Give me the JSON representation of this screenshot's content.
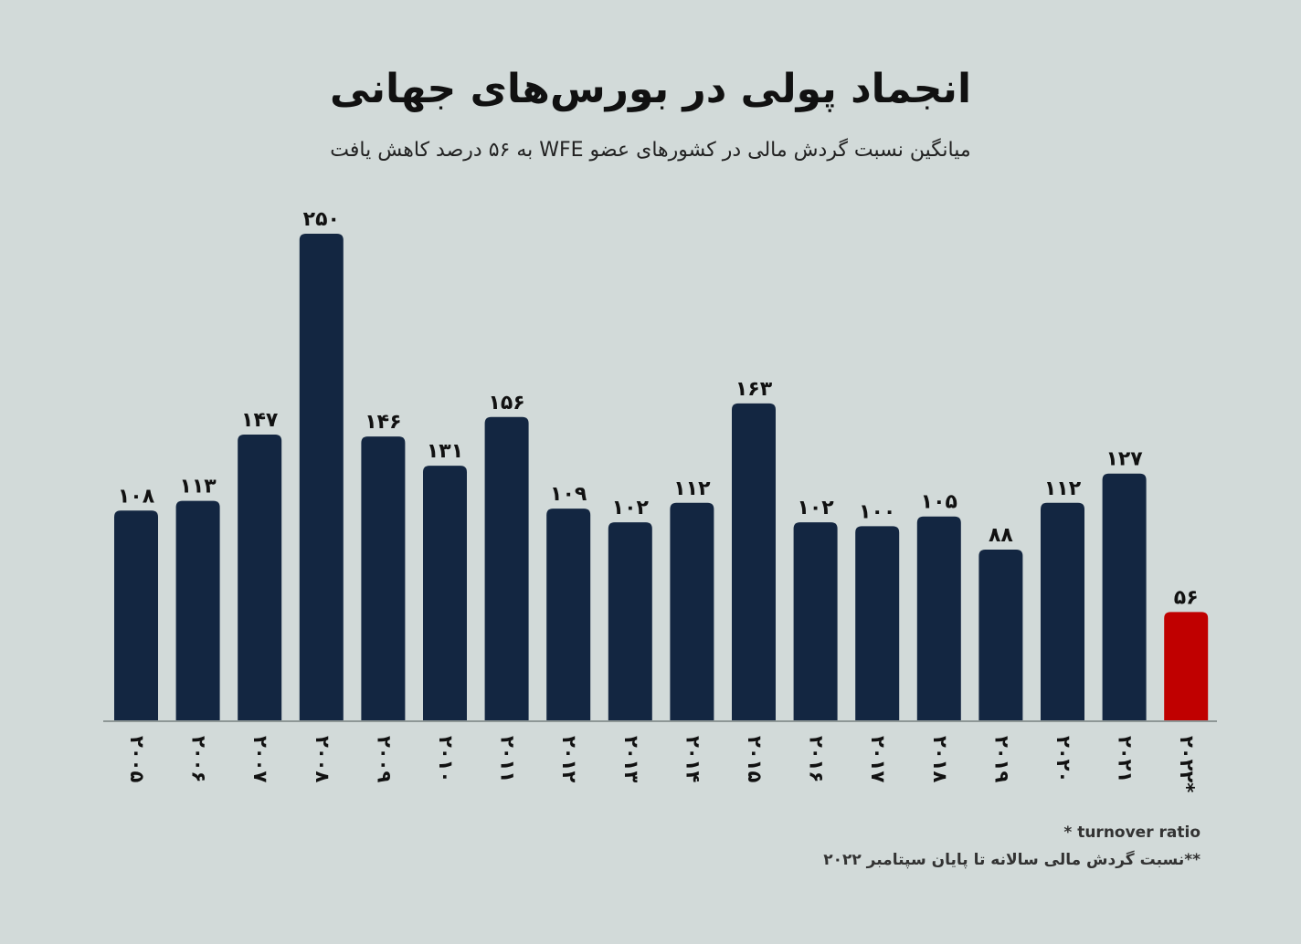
{
  "title": "انجماد پولی در بورس‌های جهانی",
  "subtitle": "میانگین نسبت گردش مالی در کشورهای عضو WFE به ۵۶ درصد کاهش یافت",
  "footnotes": {
    "note1": "turnover ratio *",
    "note2": "**نسبت گردش مالی سالانه تا پایان سپتامبر ۲۰۲۲"
  },
  "colors": {
    "background": "#d2dad9",
    "bar": "#132641",
    "highlight": "#c00000",
    "text": "#111111"
  },
  "chart_data": {
    "type": "bar",
    "title": "انجماد پولی در بورس‌های جهانی",
    "subtitle": "میانگین نسبت گردش مالی در کشورهای عضو WFE به ۵۶ درصد کاهش یافت",
    "categories": [
      "۲۰۰۵",
      "۲۰۰۶",
      "۲۰۰۷",
      "۲۰۰۸",
      "۲۰۰۹",
      "۲۰۱۰",
      "۲۰۱۱",
      "۲۰۱۲",
      "۲۰۱۳",
      "۲۰۱۴",
      "۲۰۱۵",
      "۲۰۱۶",
      "۲۰۱۷",
      "۲۰۱۸",
      "۲۰۱۹",
      "۲۰۲۰",
      "۲۰۲۱",
      "۲۰۲۲*"
    ],
    "values": [
      108,
      113,
      147,
      250,
      146,
      131,
      156,
      109,
      102,
      112,
      163,
      102,
      100,
      105,
      88,
      112,
      127,
      56
    ],
    "value_labels": [
      "۱۰۸",
      "۱۱۳",
      "۱۴۷",
      "۲۵۰",
      "۱۴۶",
      "۱۳۱",
      "۱۵۶",
      "۱۰۹",
      "۱۰۲",
      "۱۱۲",
      "۱۶۳",
      "۱۰۲",
      "۱۰۰",
      "۱۰۵",
      "۸۸",
      "۱۱۲",
      "۱۲۷",
      "۵۶"
    ],
    "highlight_index": 17,
    "ylim": [
      0,
      250
    ],
    "grid": false,
    "legend": "none",
    "xlabel": "",
    "ylabel": ""
  }
}
